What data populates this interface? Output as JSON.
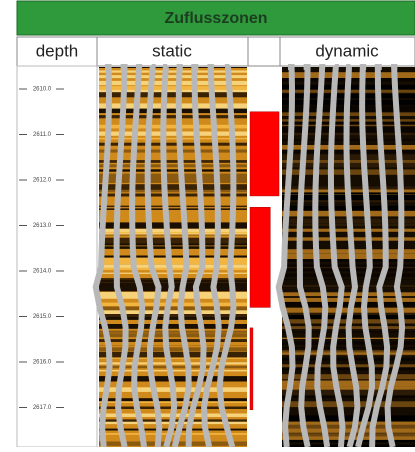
{
  "header": {
    "title": "Zuflusszonen"
  },
  "columns": [
    "depth",
    "static",
    "dynamic"
  ],
  "depth_track": {
    "ticks": [
      {
        "value": 2610,
        "label": "2610.0"
      },
      {
        "value": 2611,
        "label": "2611.0"
      },
      {
        "value": 2612,
        "label": "2612.0"
      },
      {
        "value": 2613,
        "label": "2613.0"
      },
      {
        "value": 2614,
        "label": "2614.0"
      },
      {
        "value": 2615,
        "label": "2615.0"
      },
      {
        "value": 2616,
        "label": "2616.0"
      },
      {
        "value": 2617,
        "label": "2617.0"
      }
    ]
  },
  "zones": [
    {
      "top": 2610.5,
      "bottom": 2612.35,
      "inflow": 1.0
    },
    {
      "top": 2612.6,
      "bottom": 2614.8,
      "inflow": 0.7
    },
    {
      "top": 2615.25,
      "bottom": 2617.05,
      "inflow": 0.1
    }
  ]
}
